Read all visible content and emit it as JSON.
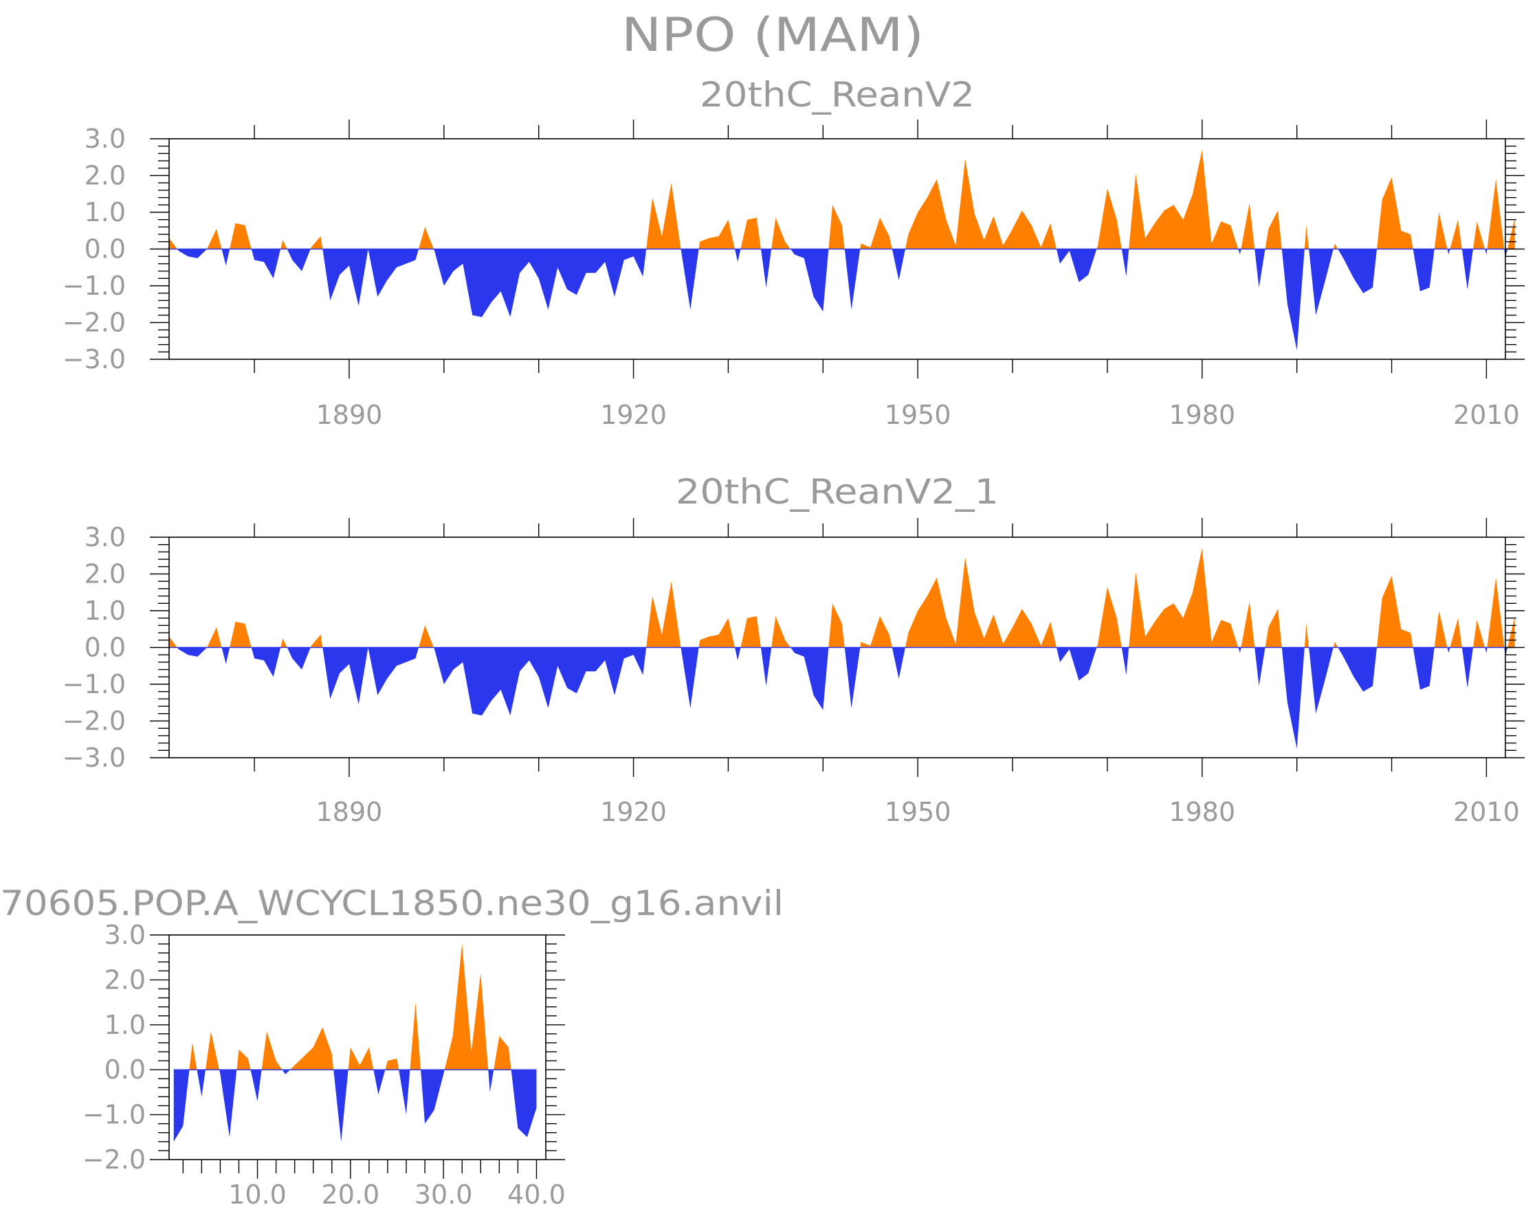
{
  "page_title": "NPO (MAM)",
  "colors": {
    "positive": "#ff8000",
    "negative": "#2a37ec",
    "text": "#9a9a9a",
    "axis": "#000000"
  },
  "chart_data": [
    {
      "type": "area",
      "title": "20thC_ReanV2",
      "xlabel": "",
      "ylabel": "",
      "ylim": [
        -3.0,
        3.0
      ],
      "xlim": [
        1871,
        2012
      ],
      "x_ticks": [
        1890,
        1920,
        1950,
        1980,
        2010
      ],
      "x_tick_labels": [
        "1890",
        "1920",
        "1950",
        "1980",
        "2010"
      ],
      "y_ticks": [
        3.0,
        2.0,
        1.0,
        0.0,
        -1.0,
        -2.0,
        -3.0
      ],
      "y_tick_labels": [
        "3.0",
        "2.0",
        "1.0",
        "0.0",
        "−1.0",
        "−2.0",
        "−3.0"
      ],
      "x_start": 1871,
      "values": [
        0.3,
        -0.05,
        -0.2,
        -0.25,
        0.0,
        0.55,
        -0.45,
        0.7,
        0.65,
        -0.3,
        -0.35,
        -0.8,
        0.25,
        -0.3,
        -0.6,
        0.05,
        0.35,
        -1.4,
        -0.7,
        -0.45,
        -1.55,
        0.0,
        -1.3,
        -0.85,
        -0.5,
        -0.4,
        -0.3,
        0.6,
        -0.05,
        -1.0,
        -0.6,
        -0.4,
        -1.8,
        -1.85,
        -1.45,
        -1.15,
        -1.85,
        -0.65,
        -0.35,
        -0.8,
        -1.65,
        -0.5,
        -1.1,
        -1.25,
        -0.65,
        -0.65,
        -0.35,
        -1.3,
        -0.3,
        -0.2,
        -0.75,
        1.4,
        0.35,
        1.8,
        0.0,
        -1.65,
        0.2,
        0.3,
        0.35,
        0.8,
        -0.35,
        0.8,
        0.85,
        -1.05,
        0.85,
        0.2,
        -0.15,
        -0.25,
        -1.3,
        -1.7,
        1.2,
        0.65,
        -1.65,
        0.15,
        0.05,
        0.85,
        0.35,
        -0.85,
        0.4,
        1.0,
        1.4,
        1.9,
        0.8,
        0.1,
        2.45,
        0.95,
        0.25,
        0.9,
        0.1,
        0.55,
        1.05,
        0.65,
        0.05,
        0.7,
        -0.4,
        -0.05,
        -0.9,
        -0.7,
        0.1,
        1.65,
        0.8,
        -0.75,
        2.05,
        0.3,
        0.7,
        1.05,
        1.2,
        0.8,
        1.5,
        2.7,
        0.15,
        0.75,
        0.65,
        -0.15,
        1.25,
        -1.05,
        0.55,
        1.05,
        -1.5,
        -2.75,
        0.65,
        -1.8,
        -0.85,
        0.15,
        -0.3,
        -0.8,
        -1.2,
        -1.05,
        1.35,
        1.95,
        0.5,
        0.4,
        -1.15,
        -1.05,
        1.0,
        -0.15,
        0.8,
        -1.1,
        0.75,
        -0.15,
        1.9,
        -0.25,
        0.85
      ]
    },
    {
      "type": "area",
      "title": "20thC_ReanV2_1",
      "xlabel": "",
      "ylabel": "",
      "ylim": [
        -3.0,
        3.0
      ],
      "xlim": [
        1871,
        2012
      ],
      "x_ticks": [
        1890,
        1920,
        1950,
        1980,
        2010
      ],
      "x_tick_labels": [
        "1890",
        "1920",
        "1950",
        "1980",
        "2010"
      ],
      "y_ticks": [
        3.0,
        2.0,
        1.0,
        0.0,
        -1.0,
        -2.0,
        -3.0
      ],
      "y_tick_labels": [
        "3.0",
        "2.0",
        "1.0",
        "0.0",
        "−1.0",
        "−2.0",
        "−3.0"
      ],
      "x_start": 1871,
      "values": [
        0.3,
        -0.05,
        -0.2,
        -0.25,
        0.0,
        0.55,
        -0.45,
        0.7,
        0.65,
        -0.3,
        -0.35,
        -0.8,
        0.25,
        -0.3,
        -0.6,
        0.05,
        0.35,
        -1.4,
        -0.7,
        -0.45,
        -1.55,
        0.0,
        -1.3,
        -0.85,
        -0.5,
        -0.4,
        -0.3,
        0.6,
        -0.05,
        -1.0,
        -0.6,
        -0.4,
        -1.8,
        -1.85,
        -1.45,
        -1.15,
        -1.85,
        -0.65,
        -0.35,
        -0.8,
        -1.65,
        -0.5,
        -1.1,
        -1.25,
        -0.65,
        -0.65,
        -0.35,
        -1.3,
        -0.3,
        -0.2,
        -0.75,
        1.4,
        0.35,
        1.8,
        0.0,
        -1.65,
        0.2,
        0.3,
        0.35,
        0.8,
        -0.35,
        0.8,
        0.85,
        -1.05,
        0.85,
        0.2,
        -0.15,
        -0.25,
        -1.3,
        -1.7,
        1.2,
        0.65,
        -1.65,
        0.15,
        0.05,
        0.85,
        0.35,
        -0.85,
        0.4,
        1.0,
        1.4,
        1.9,
        0.8,
        0.1,
        2.45,
        0.95,
        0.25,
        0.9,
        0.1,
        0.55,
        1.05,
        0.65,
        0.05,
        0.7,
        -0.4,
        -0.05,
        -0.9,
        -0.7,
        0.1,
        1.65,
        0.8,
        -0.75,
        2.05,
        0.3,
        0.7,
        1.05,
        1.2,
        0.8,
        1.5,
        2.7,
        0.15,
        0.75,
        0.65,
        -0.15,
        1.25,
        -1.05,
        0.55,
        1.05,
        -1.5,
        -2.75,
        0.65,
        -1.8,
        -0.85,
        0.15,
        -0.3,
        -0.8,
        -1.2,
        -1.05,
        1.35,
        1.95,
        0.5,
        0.4,
        -1.15,
        -1.05,
        1.0,
        -0.15,
        0.8,
        -1.1,
        0.75,
        -0.15,
        1.9,
        -0.25,
        0.85
      ]
    },
    {
      "type": "area",
      "title": "70605.POP.A_WCYCL1850.ne30_g16.anvil",
      "xlabel": "",
      "ylabel": "",
      "ylim": [
        -2.0,
        3.0
      ],
      "xlim": [
        0.5,
        41.0
      ],
      "x_ticks": [
        10.0,
        20.0,
        30.0,
        40.0
      ],
      "x_tick_labels": [
        "10.0",
        "20.0",
        "30.0",
        "40.0"
      ],
      "y_ticks": [
        3.0,
        2.0,
        1.0,
        0.0,
        -1.0,
        -2.0
      ],
      "y_tick_labels": [
        "3.0",
        "2.0",
        "1.0",
        "0.0",
        "−1.0",
        "−2.0"
      ],
      "x_start": 1,
      "values": [
        -1.6,
        -1.25,
        0.6,
        -0.6,
        0.85,
        -0.1,
        -1.5,
        0.45,
        0.25,
        -0.7,
        0.85,
        0.2,
        -0.1,
        0.1,
        0.3,
        0.5,
        0.95,
        0.35,
        -1.6,
        0.5,
        0.1,
        0.5,
        -0.55,
        0.2,
        0.25,
        -1.0,
        1.5,
        -1.2,
        -0.9,
        -0.1,
        0.75,
        2.8,
        0.4,
        2.15,
        -0.5,
        0.75,
        0.5,
        -1.3,
        -1.5,
        -0.85
      ]
    }
  ]
}
